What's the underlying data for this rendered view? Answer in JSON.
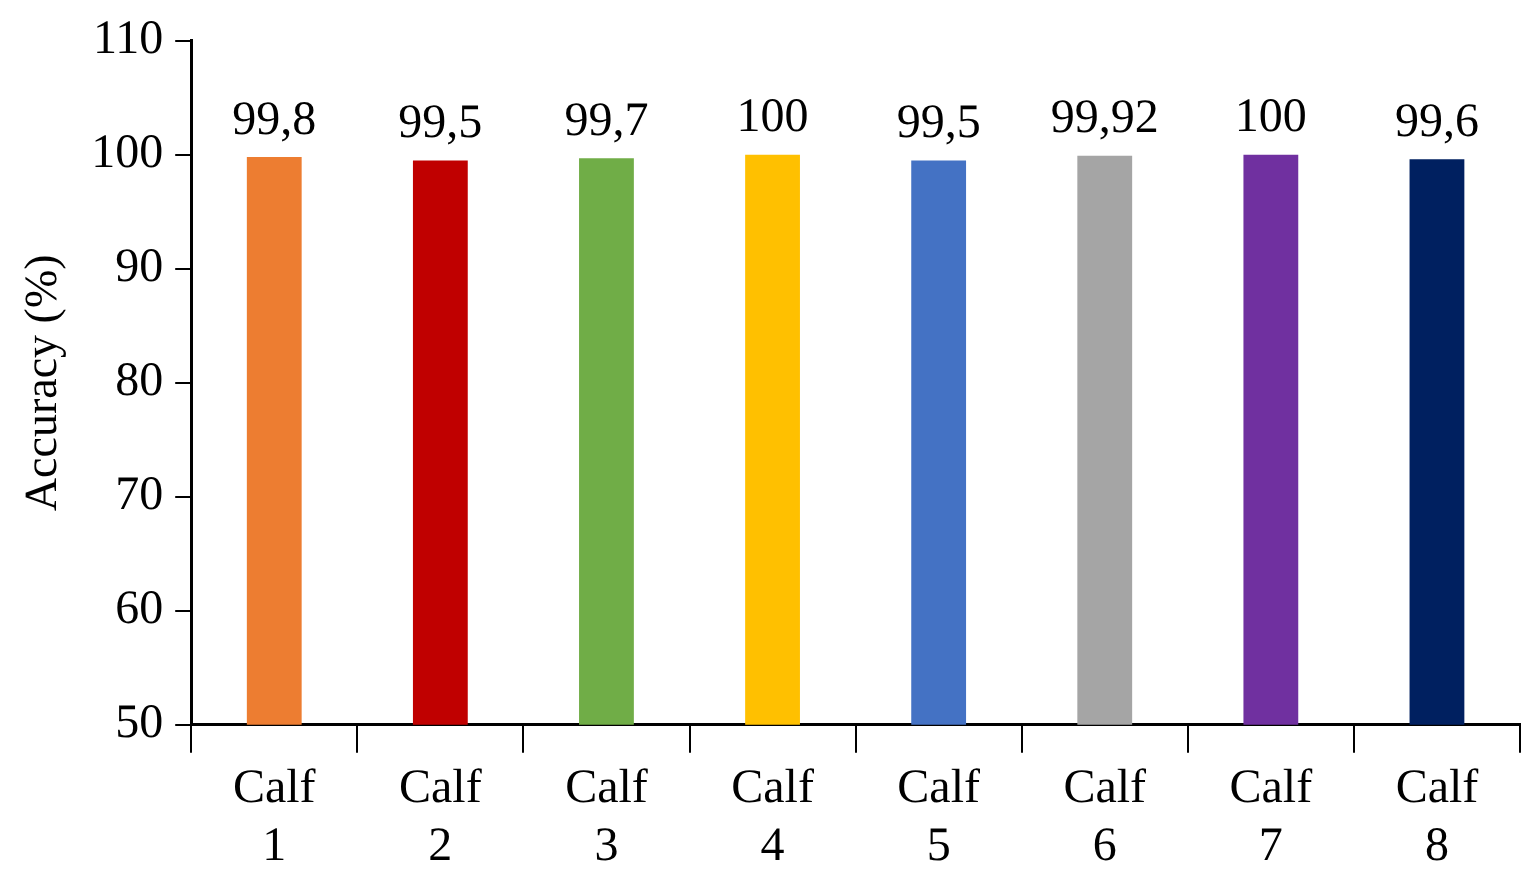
{
  "chart_data": {
    "type": "bar",
    "ylabel": "Accuracy (%)",
    "categories": [
      "Calf 1",
      "Calf 2",
      "Calf 3",
      "Calf 4",
      "Calf 5",
      "Calf 6",
      "Calf 7",
      "Calf 8"
    ],
    "values": [
      99.8,
      99.5,
      99.7,
      100,
      99.5,
      99.92,
      100,
      99.6
    ],
    "value_labels": [
      "99,8",
      "99,5",
      "99,7",
      "100",
      "99,5",
      "99,92",
      "100",
      "99,6"
    ],
    "colors": [
      "#ed7d31",
      "#c00000",
      "#70ad47",
      "#ffc000",
      "#4472c4",
      "#a5a5a5",
      "#7030a0",
      "#002060"
    ],
    "ylim": [
      50,
      110
    ],
    "yticks": [
      50,
      60,
      70,
      80,
      90,
      100,
      110
    ],
    "grid": false,
    "legend": false
  }
}
